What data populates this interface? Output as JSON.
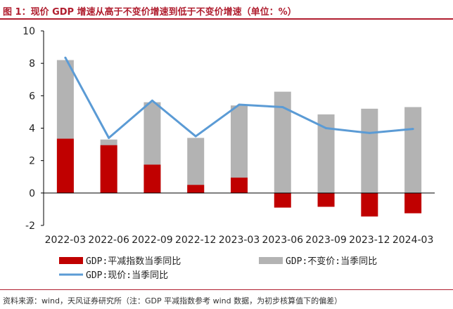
{
  "header": {
    "title": "图 1：现价 GDP 增速从高于不变价增速到低于不变价增速（单位：%）"
  },
  "footer": {
    "source": "资料来源：wind，天风证券研究所（注：GDP 平减指数参考 wind 数据，为初步核算值下的偏差）"
  },
  "colors": {
    "deflator": "#c00000",
    "constant": "#b3b3b3",
    "nominal": "#5b9bd5",
    "accent": "#b01e2f"
  },
  "chart_data": {
    "type": "bar",
    "categories": [
      "2022-03",
      "2022-06",
      "2022-09",
      "2022-12",
      "2023-03",
      "2023-06",
      "2023-09",
      "2023-12",
      "2024-03"
    ],
    "series": [
      {
        "name": "GDP:平减指数当季同比",
        "kind": "bar",
        "values": [
          3.35,
          2.95,
          1.75,
          0.5,
          0.95,
          -0.9,
          -0.85,
          -1.45,
          -1.25
        ]
      },
      {
        "name": "GDP:不变价:当季同比",
        "kind": "bar",
        "values": [
          8.2,
          3.3,
          5.6,
          3.4,
          5.4,
          6.25,
          4.85,
          5.2,
          5.3
        ]
      },
      {
        "name": "GDP:现价:当季同比",
        "kind": "line",
        "values": [
          8.35,
          3.4,
          5.7,
          3.5,
          5.45,
          5.3,
          4.0,
          3.7,
          3.95
        ]
      }
    ],
    "yticks": [
      -2,
      0,
      2,
      4,
      6,
      8,
      10
    ],
    "ylim": [
      -2,
      10
    ],
    "title": "",
    "xlabel": "",
    "ylabel": ""
  }
}
